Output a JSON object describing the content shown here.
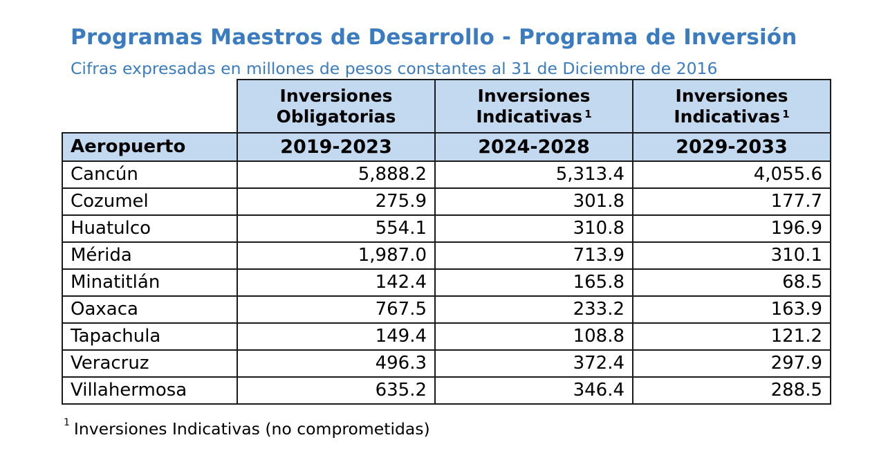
{
  "title": "Programas Maestros de Desarrollo - Programa de Inversión",
  "subtitle": "Cifras expresadas en millones de pesos constantes al 31 de Diciembre de 2016",
  "table": {
    "group_headers": [
      {
        "line1": "Inversiones",
        "line2": "Obligatorias",
        "sup": ""
      },
      {
        "line1": "Inversiones",
        "line2": "Indicativas",
        "sup": "1"
      },
      {
        "line1": "Inversiones",
        "line2": "Indicativas",
        "sup": "1"
      }
    ],
    "airport_header": "Aeropuerto",
    "periods": [
      "2019-2023",
      "2024-2028",
      "2029-2033"
    ],
    "rows": [
      {
        "airport": "Cancún",
        "values": [
          "5,888.2",
          "5,313.4",
          "4,055.6"
        ]
      },
      {
        "airport": "Cozumel",
        "values": [
          "275.9",
          "301.8",
          "177.7"
        ]
      },
      {
        "airport": "Huatulco",
        "values": [
          "554.1",
          "310.8",
          "196.9"
        ]
      },
      {
        "airport": "Mérida",
        "values": [
          "1,987.0",
          "713.9",
          "310.1"
        ]
      },
      {
        "airport": "Minatitlán",
        "values": [
          "142.4",
          "165.8",
          "68.5"
        ]
      },
      {
        "airport": "Oaxaca",
        "values": [
          "767.5",
          "233.2",
          "163.9"
        ]
      },
      {
        "airport": "Tapachula",
        "values": [
          "149.4",
          "108.8",
          "121.2"
        ]
      },
      {
        "airport": "Veracruz",
        "values": [
          "496.3",
          "372.4",
          "297.9"
        ]
      },
      {
        "airport": "Villahermosa",
        "values": [
          "635.2",
          "346.4",
          "288.5"
        ]
      }
    ]
  },
  "footnote": {
    "marker": "1",
    "text": "Inversiones Indicativas (no comprometidas)"
  }
}
